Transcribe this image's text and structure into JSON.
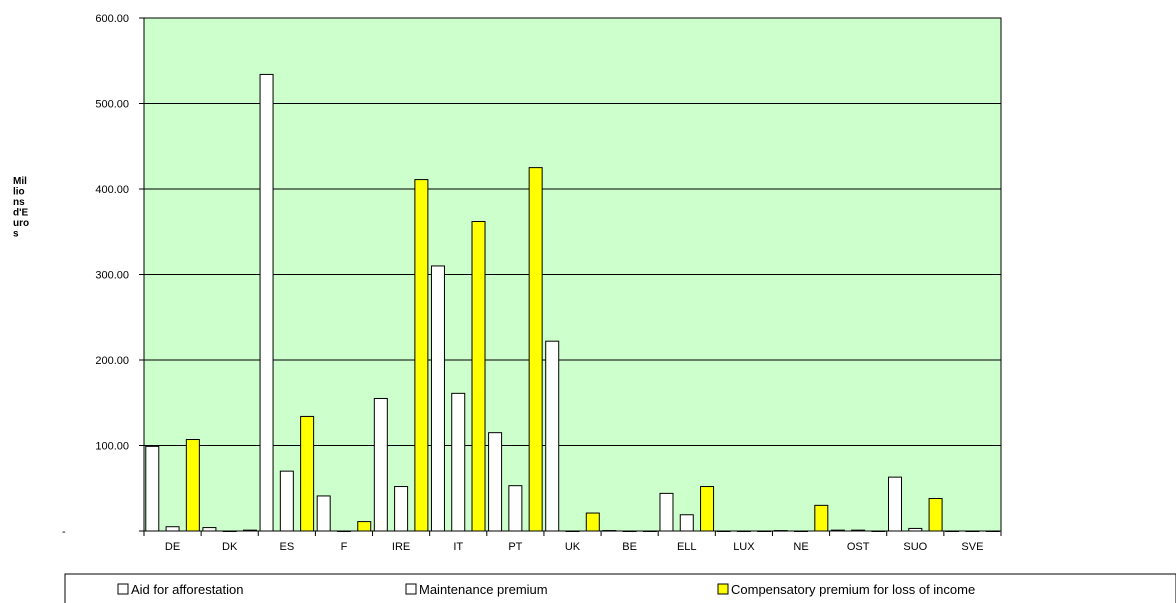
{
  "chart_data": {
    "type": "bar",
    "ylabel_lines": [
      "Mil",
      "lio",
      "ns",
      "d'E",
      "uro",
      "s"
    ],
    "ylim": [
      0,
      600
    ],
    "yticks": [
      {
        "value": 0,
        "label": "-"
      },
      {
        "value": 100,
        "label": "100.00"
      },
      {
        "value": 200,
        "label": "200.00"
      },
      {
        "value": 300,
        "label": "300.00"
      },
      {
        "value": 400,
        "label": "400.00"
      },
      {
        "value": 500,
        "label": "500.00"
      },
      {
        "value": 600,
        "label": "600.00"
      }
    ],
    "grid": true,
    "legend_position": "bottom",
    "categories": [
      "DE",
      "DK",
      "ES",
      "F",
      "IRE",
      "IT",
      "PT",
      "UK",
      "BE",
      "ELL",
      "LUX",
      "NE",
      "OST",
      "SUO",
      "SVE"
    ],
    "series": [
      {
        "name": "Aid for afforestation",
        "color": "#ffffff",
        "values": [
          99,
          4,
          534,
          41,
          155,
          310,
          115,
          222,
          0.5,
          44,
          0,
          0.5,
          1,
          63,
          0
        ]
      },
      {
        "name": "Maintenance premium",
        "color": "#ffffff",
        "values": [
          5,
          0,
          70,
          0,
          52,
          161,
          53,
          0,
          0,
          19,
          0,
          0,
          1,
          3,
          0
        ]
      },
      {
        "name": "Compensatory premium for loss of income",
        "color": "#ffff00",
        "values": [
          107,
          1,
          134,
          11,
          411,
          362,
          425,
          21,
          0,
          52,
          0,
          30,
          0,
          38,
          0
        ]
      }
    ],
    "plot_background": "#ccffcc"
  }
}
